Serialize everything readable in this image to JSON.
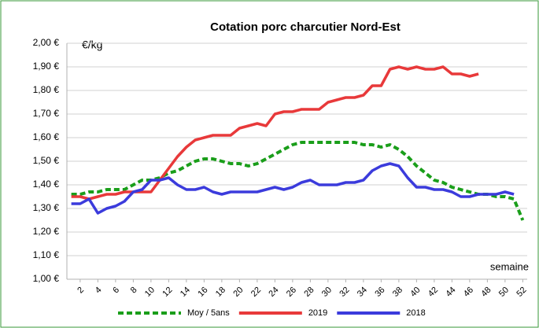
{
  "chart_data": {
    "type": "line",
    "title": "Cotation porc charcutier Nord-Est",
    "y_unit": "€/kg",
    "x_label": "semaine",
    "x": [
      1,
      2,
      3,
      4,
      5,
      6,
      7,
      8,
      9,
      10,
      11,
      12,
      13,
      14,
      15,
      16,
      17,
      18,
      19,
      20,
      21,
      22,
      23,
      24,
      25,
      26,
      27,
      28,
      29,
      30,
      31,
      32,
      33,
      34,
      35,
      36,
      37,
      38,
      39,
      40,
      41,
      42,
      43,
      44,
      45,
      46,
      47,
      48,
      49,
      50,
      51,
      52
    ],
    "xlim": [
      0.5,
      52.5
    ],
    "xticks": [
      2,
      4,
      6,
      8,
      10,
      12,
      14,
      16,
      18,
      20,
      22,
      24,
      26,
      28,
      30,
      32,
      34,
      36,
      38,
      40,
      42,
      44,
      46,
      48,
      50,
      52
    ],
    "ylim": [
      1.0,
      2.0
    ],
    "yticks": [
      {
        "value": 1.0,
        "label": "1,00 €"
      },
      {
        "value": 1.1,
        "label": "1,10 €"
      },
      {
        "value": 1.2,
        "label": "1,20 €"
      },
      {
        "value": 1.3,
        "label": "1,30 €"
      },
      {
        "value": 1.4,
        "label": "1,40 €"
      },
      {
        "value": 1.5,
        "label": "1,50 €"
      },
      {
        "value": 1.6,
        "label": "1,60 €"
      },
      {
        "value": 1.7,
        "label": "1,70 €"
      },
      {
        "value": 1.8,
        "label": "1,80 €"
      },
      {
        "value": 1.9,
        "label": "1,90 €"
      },
      {
        "value": 2.0,
        "label": "2,00 €"
      }
    ],
    "grid": true,
    "legend": "bottom",
    "series": [
      {
        "name": "Moy / 5ans",
        "color": "#1a9e1a",
        "dashed": true,
        "values": [
          1.36,
          1.36,
          1.37,
          1.37,
          1.38,
          1.38,
          1.38,
          1.4,
          1.42,
          1.42,
          1.43,
          1.45,
          1.46,
          1.48,
          1.5,
          1.51,
          1.51,
          1.5,
          1.49,
          1.49,
          1.48,
          1.49,
          1.51,
          1.53,
          1.55,
          1.57,
          1.58,
          1.58,
          1.58,
          1.58,
          1.58,
          1.58,
          1.58,
          1.57,
          1.57,
          1.56,
          1.57,
          1.55,
          1.52,
          1.48,
          1.45,
          1.42,
          1.41,
          1.39,
          1.38,
          1.37,
          1.36,
          1.36,
          1.35,
          1.35,
          1.34,
          1.25
        ]
      },
      {
        "name": "2019",
        "color": "#e8393a",
        "dashed": false,
        "values": [
          1.35,
          1.35,
          1.34,
          1.35,
          1.36,
          1.36,
          1.37,
          1.37,
          1.37,
          1.37,
          1.42,
          1.47,
          1.52,
          1.56,
          1.59,
          1.6,
          1.61,
          1.61,
          1.61,
          1.64,
          1.65,
          1.66,
          1.65,
          1.7,
          1.71,
          1.71,
          1.72,
          1.72,
          1.72,
          1.75,
          1.76,
          1.77,
          1.77,
          1.78,
          1.82,
          1.82,
          1.89,
          1.9,
          1.89,
          1.9,
          1.89,
          1.89,
          1.9,
          1.87,
          1.87,
          1.86,
          1.87,
          null,
          null,
          null,
          null,
          null
        ]
      },
      {
        "name": "2018",
        "color": "#3b3bdc",
        "dashed": false,
        "values": [
          1.32,
          1.32,
          1.34,
          1.28,
          1.3,
          1.31,
          1.33,
          1.37,
          1.38,
          1.42,
          1.42,
          1.43,
          1.4,
          1.38,
          1.38,
          1.39,
          1.37,
          1.36,
          1.37,
          1.37,
          1.37,
          1.37,
          1.38,
          1.39,
          1.38,
          1.39,
          1.41,
          1.42,
          1.4,
          1.4,
          1.4,
          1.41,
          1.41,
          1.42,
          1.46,
          1.48,
          1.49,
          1.48,
          1.43,
          1.39,
          1.39,
          1.38,
          1.38,
          1.37,
          1.35,
          1.35,
          1.36,
          1.36,
          1.36,
          1.37,
          1.36,
          null
        ]
      }
    ]
  }
}
